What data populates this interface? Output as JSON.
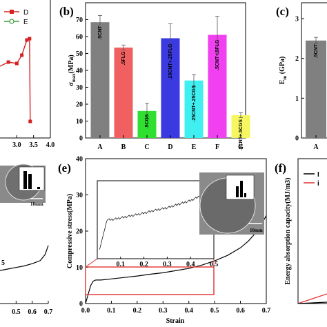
{
  "chart_data": [
    {
      "panel": "(a)",
      "type": "line",
      "xlim": [
        2.5,
        4.0
      ],
      "xticks": [
        "3.0",
        "3.5",
        "4.0"
      ],
      "legend": [
        "D",
        "E"
      ],
      "series": [
        {
          "name": "D",
          "color": "#d62020",
          "marker": "square",
          "x": [
            2.5,
            2.75,
            3.0,
            3.15,
            3.3,
            3.38,
            3.4
          ],
          "y": [
            0.52,
            0.55,
            0.54,
            0.6,
            0.71,
            0.72,
            0.12
          ]
        }
      ]
    },
    {
      "panel": "(b)",
      "type": "bar",
      "categories": [
        "A",
        "B",
        "C",
        "D",
        "E",
        "F",
        "G"
      ],
      "values": [
        68.5,
        53.5,
        16.0,
        59.0,
        34.0,
        61.0,
        13.5
      ],
      "errors": [
        4.0,
        1.5,
        4.5,
        8.5,
        3.5,
        11.0,
        1.5
      ],
      "bar_labels": [
        ".5CNT",
        ".5FLG",
        ".5CGS",
        ".25CNT+.25FLG",
        ".25CNT+.25CGS",
        ".5CNT+.5FLG",
        ".5CNT+.5CGS"
      ],
      "colors": [
        "#808080",
        "#f06060",
        "#30e030",
        "#3a3ae0",
        "#40f0f0",
        "#f040f0",
        "#f6f660"
      ],
      "ylabel": "σmax(MPa)",
      "ylim": [
        0,
        80
      ],
      "yticks": [
        0,
        10,
        20,
        30,
        40,
        50,
        60,
        70
      ]
    },
    {
      "panel": "(c)",
      "type": "bar",
      "categories": [
        "A"
      ],
      "values": [
        2.45
      ],
      "errors": [
        0.08
      ],
      "bar_labels": [
        ".5CNT"
      ],
      "colors": [
        "#808080"
      ],
      "ylabel": "Em (GPa)",
      "ylim": [
        0,
        3.4
      ],
      "yticks": [
        0,
        1,
        2,
        3
      ]
    },
    {
      "panel": "(d)",
      "type": "line",
      "xlim": [
        0.4,
        0.7
      ],
      "xticks": [
        "0.5",
        "0.6",
        "0.7"
      ],
      "partial_label": "5",
      "inset_scale": "10mm",
      "series": [
        {
          "x": [
            0.4,
            0.45,
            0.5,
            0.55,
            0.6,
            0.65,
            0.68,
            0.7
          ],
          "y": [
            0.09,
            0.11,
            0.13,
            0.15,
            0.18,
            0.22,
            0.3,
            0.42
          ]
        }
      ]
    },
    {
      "panel": "(e)",
      "type": "line",
      "xlabel": "Strain",
      "ylabel": "Compressive stress(MPa)",
      "xlim": [
        0,
        0.7
      ],
      "ylim": [
        0,
        40
      ],
      "xticks": [
        "0.0",
        "0.1",
        "0.2",
        "0.3",
        "0.4",
        "0.5",
        "0.6",
        "0.7"
      ],
      "yticks": [
        "0",
        "10",
        "20",
        "30",
        "40"
      ],
      "inset_xticks": [
        "0.1",
        "0.2",
        "0.3",
        "0.4",
        "0.5"
      ],
      "inset_scale": "10mm",
      "series": [
        {
          "x": [
            0,
            0.01,
            0.02,
            0.03,
            0.04,
            0.06,
            0.1,
            0.15,
            0.2,
            0.25,
            0.3,
            0.35,
            0.4,
            0.45,
            0.5,
            0.55,
            0.6,
            0.63,
            0.66,
            0.68,
            0.7
          ],
          "y": [
            0,
            2.5,
            5.0,
            6.2,
            6.5,
            6.5,
            6.8,
            7.2,
            7.6,
            8.1,
            8.5,
            9.1,
            9.7,
            10.6,
            11.8,
            13.3,
            15.4,
            17.2,
            19.6,
            21.7,
            24.3
          ]
        }
      ]
    },
    {
      "panel": "(f)",
      "type": "line",
      "ylabel": "Energy absorption capacity(MJ/m3)",
      "legend": [
        "I",
        "i"
      ]
    }
  ]
}
